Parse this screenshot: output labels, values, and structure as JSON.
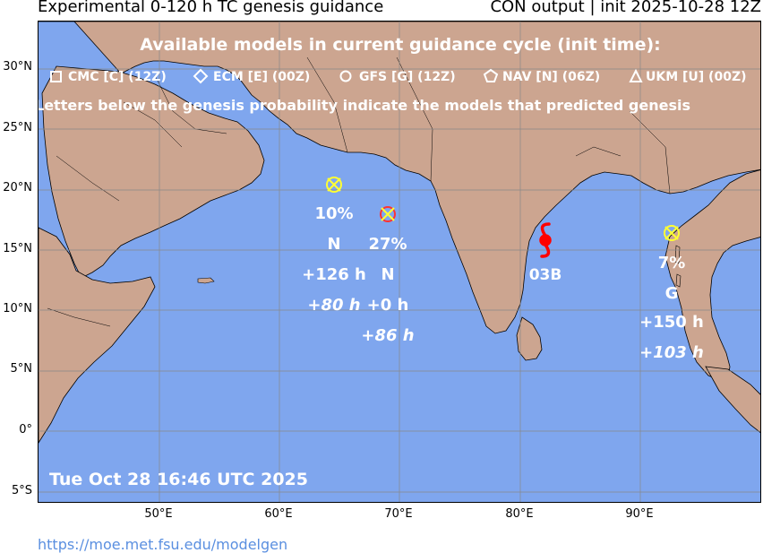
{
  "header": {
    "title_left": "Experimental 0-120 h TC genesis guidance",
    "title_right": "CON output | init 2025-10-28 12Z"
  },
  "legend": {
    "heading": "Available models in current guidance cycle (init time):",
    "models": [
      {
        "symbol": "square",
        "label": "CMC [C] (12Z)"
      },
      {
        "symbol": "diamond",
        "label": "ECM [E] (00Z)"
      },
      {
        "symbol": "circle",
        "label": "GFS [G] (12Z)"
      },
      {
        "symbol": "pentagon",
        "label": "NAV [N] (06Z)"
      },
      {
        "symbol": "triangle",
        "label": "UKM [U] (00Z)"
      }
    ],
    "note": "Letters below the genesis probability indicate the models that predicted genesis"
  },
  "axes": {
    "lat_labels": [
      "30°N",
      "25°N",
      "20°N",
      "15°N",
      "10°N",
      "5°N",
      "0°",
      "5°S"
    ],
    "lon_labels": [
      "50°E",
      "60°E",
      "70°E",
      "80°E",
      "90°E"
    ]
  },
  "genesis_points": [
    {
      "probability": "10%",
      "models": "N",
      "lead_time": "+126 h",
      "lead_time_alt": "+80 h",
      "marker_color": "#ffff33"
    },
    {
      "probability": "27%",
      "models": "N",
      "lead_time": "+0 h",
      "lead_time_alt": "+86 h",
      "marker_color": "#ffff33"
    },
    {
      "probability": "7%",
      "models": "G",
      "lead_time": "+150 h",
      "lead_time_alt": "+103 h",
      "marker_color": "#ffff33"
    }
  ],
  "storm": {
    "label": "03B",
    "icon": "tropical-cyclone-icon",
    "color": "#ff0000"
  },
  "timestamp": "Tue Oct 28 16:46 UTC 2025",
  "footer_url": "https://moe.met.fsu.edu/modelgen",
  "colors": {
    "ocean": "#7fa6ee",
    "land": "#cca590",
    "text_overlay": "#ffffff"
  }
}
